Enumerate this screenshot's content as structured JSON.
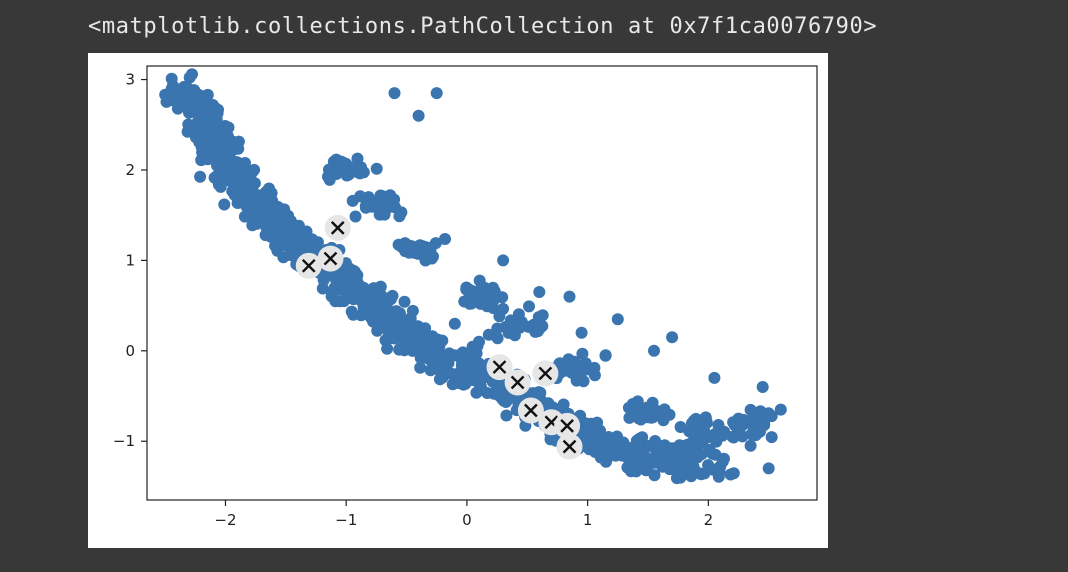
{
  "output": {
    "repr_text": "<matplotlib.collections.PathCollection at 0x7f1ca0076790>"
  },
  "colors": {
    "background": "#383838",
    "figure_bg": "#ffffff",
    "point_color": "#3a75af",
    "centroid_fill": "#e6e6e6",
    "centroid_marker": "#111111"
  },
  "chart_data": {
    "type": "scatter",
    "xlim": [
      -2.65,
      2.9
    ],
    "ylim": [
      -1.65,
      3.15
    ],
    "x_ticks": [
      -2,
      -1,
      0,
      1,
      2
    ],
    "y_ticks": [
      -1,
      0,
      1,
      2,
      3
    ],
    "x_tick_labels": [
      "−2",
      "−1",
      "0",
      "1",
      "2"
    ],
    "y_tick_labels": [
      "−1",
      "0",
      "1",
      "2",
      "3"
    ],
    "grid": false,
    "series": [
      {
        "marker": "circle",
        "color": "#3a75af",
        "density_spine": [
          [
            -2.35,
            2.9
          ],
          [
            -2.2,
            2.55
          ],
          [
            -2.05,
            2.25
          ],
          [
            -1.9,
            1.95
          ],
          [
            -1.75,
            1.65
          ],
          [
            -1.55,
            1.35
          ],
          [
            -1.35,
            1.1
          ],
          [
            -1.1,
            0.85
          ],
          [
            -0.85,
            0.6
          ],
          [
            -0.6,
            0.3
          ],
          [
            -0.3,
            0.0
          ],
          [
            0.0,
            -0.2
          ],
          [
            0.3,
            -0.4
          ],
          [
            0.6,
            -0.65
          ],
          [
            0.9,
            -0.9
          ],
          [
            1.2,
            -1.05
          ],
          [
            1.5,
            -1.15
          ],
          [
            1.8,
            -1.2
          ],
          [
            2.1,
            -1.25
          ]
        ],
        "extra_regions": [
          [
            -1.0,
            2.0
          ],
          [
            -0.7,
            1.6
          ],
          [
            -0.4,
            1.1
          ],
          [
            0.1,
            0.6
          ],
          [
            0.4,
            0.3
          ],
          [
            0.9,
            -0.2
          ],
          [
            1.5,
            -0.7
          ],
          [
            2.0,
            -0.9
          ],
          [
            2.4,
            -0.8
          ]
        ],
        "outliers": [
          [
            -0.25,
            2.85
          ],
          [
            -0.4,
            2.6
          ],
          [
            -0.6,
            2.85
          ],
          [
            0.3,
            1.0
          ],
          [
            0.6,
            0.65
          ],
          [
            0.85,
            0.6
          ],
          [
            1.25,
            0.35
          ],
          [
            1.7,
            0.15
          ],
          [
            1.55,
            0.0
          ],
          [
            2.05,
            -0.3
          ],
          [
            2.25,
            -0.75
          ],
          [
            2.45,
            -0.4
          ],
          [
            2.6,
            -0.65
          ],
          [
            2.5,
            -1.3
          ],
          [
            2.35,
            -1.05
          ],
          [
            1.15,
            -0.05
          ],
          [
            0.95,
            0.2
          ],
          [
            0.1,
            0.1
          ],
          [
            -0.1,
            0.3
          ],
          [
            2.2,
            -0.95
          ]
        ]
      }
    ],
    "centroids": {
      "marker": "x",
      "points": [
        [
          -1.07,
          1.36
        ],
        [
          -1.13,
          1.02
        ],
        [
          -1.31,
          0.94
        ],
        [
          0.27,
          -0.18
        ],
        [
          0.42,
          -0.35
        ],
        [
          0.65,
          -0.25
        ],
        [
          0.53,
          -0.66
        ],
        [
          0.7,
          -0.79
        ],
        [
          0.83,
          -0.83
        ],
        [
          0.85,
          -1.06
        ]
      ]
    }
  }
}
